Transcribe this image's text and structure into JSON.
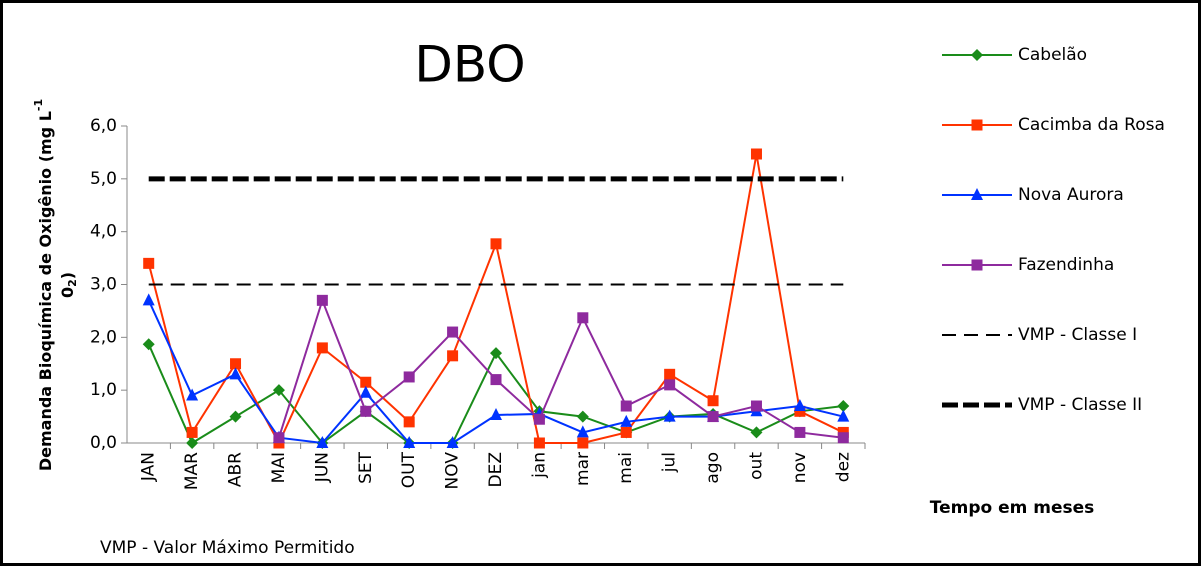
{
  "chart_data": {
    "type": "line",
    "title": "DBO",
    "y_label_parts": [
      "Demanda Bioquímica de Oxigênio (mg L",
      "-1",
      " 0",
      "2",
      ")"
    ],
    "x_label": "Tempo em meses",
    "footnote": "VMP - Valor Máximo Permitido",
    "categories": [
      "JAN",
      "MAR",
      "ABR",
      "MAI",
      "JUN",
      "SET",
      "OUT",
      "NOV",
      "DEZ",
      "jan",
      "mar",
      "mai",
      "jul",
      "ago",
      "out",
      "nov",
      "dez"
    ],
    "ylim": [
      0,
      6
    ],
    "yticks": [
      {
        "value": 0,
        "label": "0,0"
      },
      {
        "value": 1,
        "label": "1,0"
      },
      {
        "value": 2,
        "label": "2,0"
      },
      {
        "value": 3,
        "label": "3,0"
      },
      {
        "value": 4,
        "label": "4,0"
      },
      {
        "value": 5,
        "label": "5,0"
      },
      {
        "value": 6,
        "label": "6,0"
      }
    ],
    "series": [
      {
        "name": "Cabelão",
        "color": "#1a8c1a",
        "marker": "diamond",
        "values": [
          1.87,
          0.0,
          0.5,
          1.0,
          0.0,
          0.6,
          0.0,
          0.0,
          1.7,
          0.6,
          0.5,
          0.2,
          0.5,
          0.55,
          0.2,
          0.6,
          0.7
        ]
      },
      {
        "name": "Cacimba da Rosa",
        "color": "#ff3300",
        "marker": "square",
        "values": [
          3.4,
          0.2,
          1.5,
          0.0,
          1.8,
          1.15,
          0.4,
          1.65,
          3.77,
          0.0,
          0.0,
          0.2,
          1.3,
          0.8,
          5.47,
          0.6,
          0.2
        ]
      },
      {
        "name": "Nova Aurora",
        "color": "#0033ff",
        "marker": "triangle",
        "values": [
          2.7,
          0.9,
          1.3,
          0.1,
          0.0,
          0.95,
          0.0,
          0.0,
          0.53,
          0.55,
          0.2,
          0.4,
          0.5,
          0.5,
          0.6,
          0.7,
          0.5
        ]
      },
      {
        "name": "Fazendinha",
        "color": "#8e2a9e",
        "marker": "square",
        "values": [
          null,
          null,
          null,
          0.1,
          2.7,
          0.6,
          1.25,
          2.1,
          1.2,
          0.45,
          2.37,
          0.7,
          1.1,
          0.5,
          0.7,
          0.2,
          0.1
        ]
      },
      {
        "name": "VMP - Classe I",
        "color": "#000000",
        "style": "dashed",
        "values": [
          3,
          3,
          3,
          3,
          3,
          3,
          3,
          3,
          3,
          3,
          3,
          3,
          3,
          3,
          3,
          3,
          3
        ]
      },
      {
        "name": "VMP - Classe II",
        "color": "#000000",
        "style": "thick",
        "values": [
          5,
          5,
          5,
          5,
          5,
          5,
          5,
          5,
          5,
          5,
          5,
          5,
          5,
          5,
          5,
          5,
          5
        ]
      }
    ]
  }
}
